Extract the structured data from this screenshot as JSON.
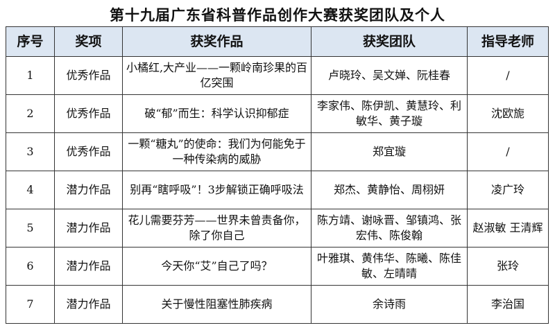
{
  "title": "第十九届广东省科普作品创作大赛获奖团队及个人",
  "headers": [
    "序号",
    "奖项",
    "获奖作品",
    "获奖团队",
    "指导老师"
  ],
  "rows": [
    [
      "1",
      "优秀作品",
      "小橘红,大产业——一颗岭南珍果的百亿突围",
      "卢晓玲、吴文婵、阮桂春",
      "/"
    ],
    [
      "2",
      "优秀作品",
      "破“郁”而生：科学认识抑郁症",
      "李家伟、陈伊凯、黄慧玲、利敏华、黄子璇",
      "沈欧旎"
    ],
    [
      "3",
      "优秀作品",
      "一颗“糖丸”的使命：我们为何能免于一种传染病的威胁",
      "郑宜璇",
      "/"
    ],
    [
      "4",
      "潜力作品",
      "别再“瞎呼吸”！3步解锁正确呼吸法",
      "郑杰、黄静怡、周栩妍",
      "凌广玲"
    ],
    [
      "5",
      "潜力作品",
      "花儿需要芬芳——世界未曾责备你，除了你自己",
      "陈方靖、谢咏晋、邹镇鸿、张宏伟、陈俊翰",
      "赵淑敏 王清辉"
    ],
    [
      "6",
      "潜力作品",
      "今天你“艾”自己了吗？",
      "叶雅琪、黄伟华、陈曦、陈佳敏、左晴晴",
      "张玲"
    ],
    [
      "7",
      "潜力作品",
      "关于慢性阻塞性肺疾病",
      "余诗雨",
      "李治国"
    ]
  ]
}
